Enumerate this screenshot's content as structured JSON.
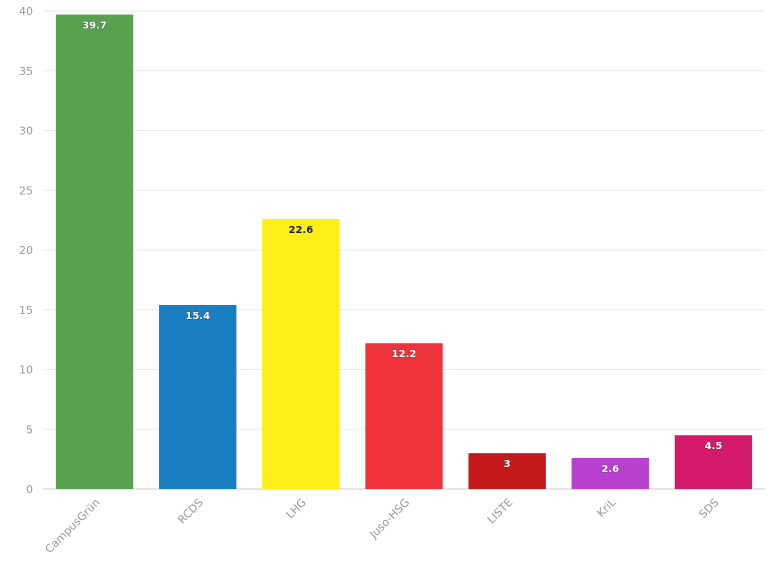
{
  "chart_data": {
    "type": "bar",
    "title": "",
    "xlabel": "",
    "ylabel": "",
    "ylim": [
      0,
      40
    ],
    "yticks": [
      0,
      5,
      10,
      15,
      20,
      25,
      30,
      35,
      40
    ],
    "grid": true,
    "legend": "none",
    "categories": [
      "CampusGrün",
      "RCDS",
      "LHG",
      "Juso-HSG",
      "LISTE",
      "KriL",
      "SDS"
    ],
    "values": [
      39.7,
      15.4,
      22.6,
      12.2,
      3,
      2.6,
      4.5
    ],
    "data_labels": [
      "39.7",
      "15.4",
      "22.6",
      "12.2",
      "3",
      "2.6",
      "4.5"
    ],
    "colors": [
      "#58a14e",
      "#1a7ec2",
      "#ffee18",
      "#ef333c",
      "#c4191c",
      "#b740d0",
      "#d4186a"
    ]
  }
}
